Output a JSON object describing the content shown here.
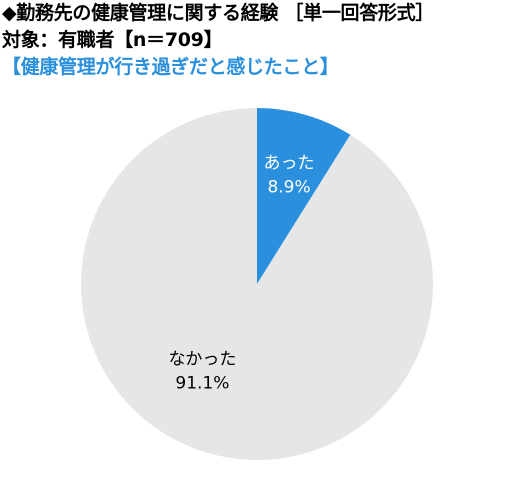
{
  "header": {
    "title": "◆勤務先の健康管理に関する経験 ［単一回答形式］",
    "subtitle": "対象：有職者【n＝709】",
    "question": "【健康管理が行き過ぎだと感じたこと】"
  },
  "colors": {
    "accent": "#2a8fdc",
    "neutral": "#e6e6e6"
  },
  "chart_data": {
    "type": "pie",
    "title": "【健康管理が行き過ぎだと感じたこと】",
    "slices": [
      {
        "name": "あった",
        "value": 8.9,
        "label": "8.9%",
        "color": "#2a8fdc"
      },
      {
        "name": "なかった",
        "value": 91.1,
        "label": "91.1%",
        "color": "#e6e6e6"
      }
    ],
    "start_angle_deg": 0,
    "direction": "clockwise",
    "legend": "none"
  }
}
